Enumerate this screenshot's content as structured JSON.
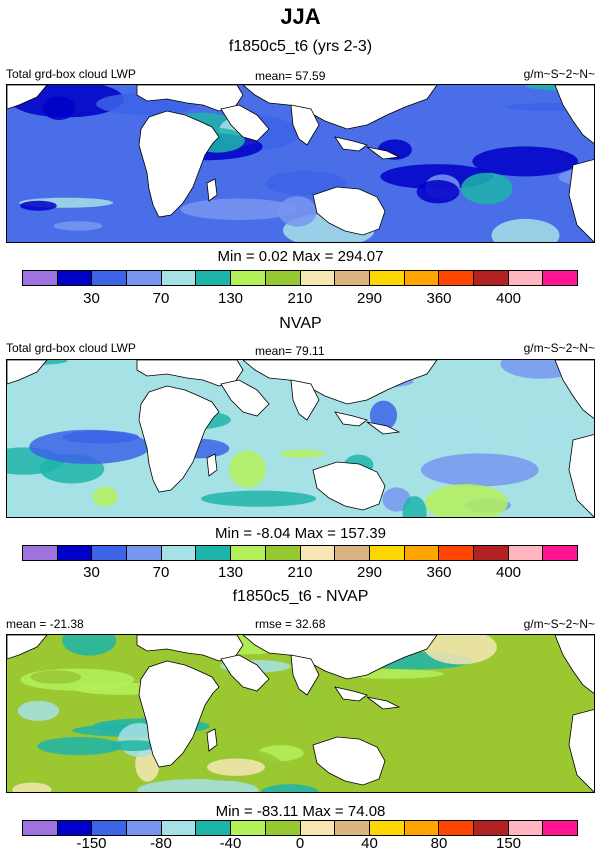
{
  "title": "JJA",
  "panels": [
    {
      "subtitle": "f1850c5_t6 (yrs 2-3)",
      "left_label": "Total grd-box cloud LWP",
      "center_label": "mean=  57.59",
      "right_label": "g/m~S~2~N~",
      "minmax": "Min =   0.02 Max = 294.07",
      "tick_labels": [
        "30",
        "70",
        "130",
        "210",
        "290",
        "360",
        "400"
      ],
      "base_color": "#4a6ee8",
      "palette": "lwp"
    },
    {
      "subtitle": "NVAP",
      "left_label": "Total grd-box cloud LWP",
      "center_label": "mean=  79.11",
      "right_label": "g/m~S~2~N~",
      "minmax": "Min =  -8.04 Max = 157.39",
      "tick_labels": [
        "30",
        "70",
        "130",
        "210",
        "290",
        "360",
        "400"
      ],
      "base_color": "#a6e1e6",
      "palette": "lwp"
    },
    {
      "subtitle": "f1850c5_t6 - NVAP",
      "left_label": "mean = -21.38",
      "center_label": "rmse =  32.68",
      "right_label": "g/m~S~2~N~",
      "minmax": "Min = -83.11 Max =  74.08",
      "tick_labels": [
        "-150",
        "-80",
        "-40",
        "0",
        "40",
        "80",
        "150"
      ],
      "base_color": "#9bc731",
      "palette": "diff"
    }
  ],
  "colorbar": {
    "colors": [
      "#9e73e0",
      "#0000c8",
      "#3c64e6",
      "#7896f0",
      "#a6e1e6",
      "#1eb4aa",
      "#b4f05a",
      "#96c832",
      "#f5e6b4",
      "#dcb482",
      "#ffd700",
      "#ffa500",
      "#ff4500",
      "#b22222",
      "#ffb6c1",
      "#ff1493"
    ]
  }
}
